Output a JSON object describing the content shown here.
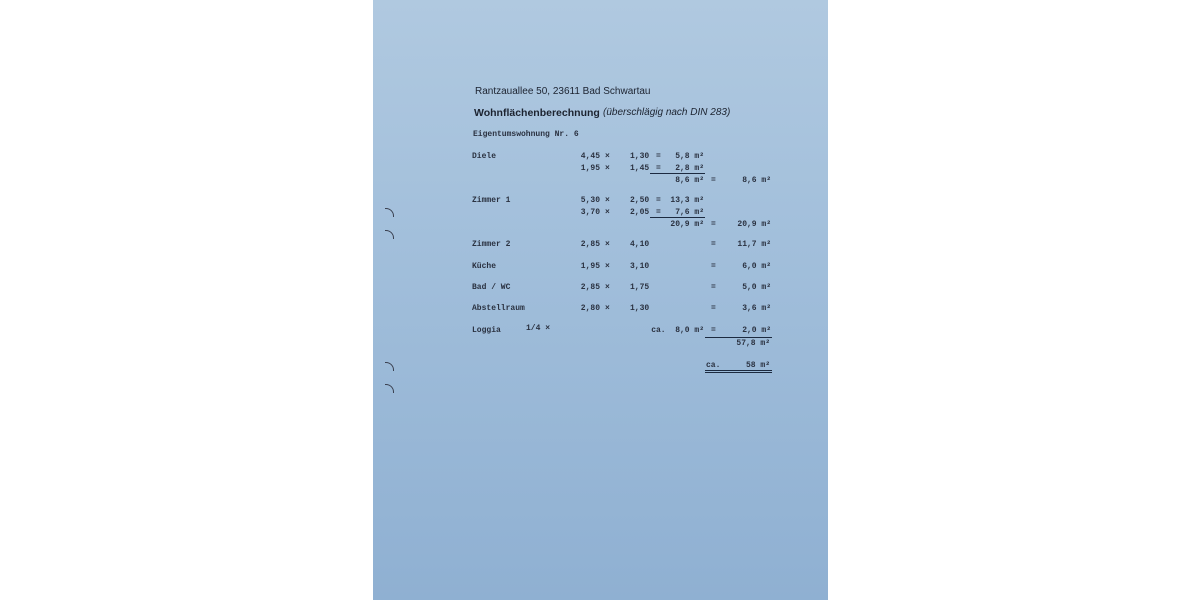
{
  "address": "Rantzauallee 50, 23611 Bad Schwartau",
  "title": "Wohnflächenberechnung",
  "subtitle": "(überschlägig nach DIN 283)",
  "unit_heading": "Eigentumswohnung Nr. 6",
  "rows": [
    {
      "label": "Diele",
      "a": "4,45",
      "x": "×",
      "b": "1,30",
      "eq": "=",
      "res": "5,8 m²",
      "eq2": "",
      "total": ""
    },
    {
      "label": "",
      "a": "1,95",
      "x": "×",
      "b": "1,45",
      "eq": "=",
      "res": "2,8 m²",
      "eq2": "",
      "total": ""
    },
    {
      "label": "",
      "a": "",
      "x": "",
      "b": "",
      "eq": "",
      "res": "8,6 m²",
      "eq2": "=",
      "total": "8,6 m²"
    },
    {
      "label": "Zimmer 1",
      "a": "5,30",
      "x": "×",
      "b": "2,50",
      "eq": "=",
      "res": "13,3 m²",
      "eq2": "",
      "total": ""
    },
    {
      "label": "",
      "a": "3,70",
      "x": "×",
      "b": "2,05",
      "eq": "=",
      "res": "7,6 m²",
      "eq2": "",
      "total": ""
    },
    {
      "label": "",
      "a": "",
      "x": "",
      "b": "",
      "eq": "",
      "res": "20,9 m²",
      "eq2": "=",
      "total": "20,9 m²"
    },
    {
      "label": "Zimmer 2",
      "a": "2,85",
      "x": "×",
      "b": "4,10",
      "eq": "",
      "res": "",
      "eq2": "=",
      "total": "11,7 m²"
    },
    {
      "label": "Küche",
      "a": "1,95",
      "x": "×",
      "b": "3,10",
      "eq": "",
      "res": "",
      "eq2": "=",
      "total": "6,0 m²"
    },
    {
      "label": "Bad / WC",
      "a": "2,85",
      "x": "×",
      "b": "1,75",
      "eq": "",
      "res": "",
      "eq2": "=",
      "total": "5,0 m²"
    },
    {
      "label": "Abstellraum",
      "a": "2,80",
      "x": "×",
      "b": "1,30",
      "eq": "",
      "res": "",
      "eq2": "=",
      "total": "3,6 m²"
    },
    {
      "label": "Loggia",
      "a": "",
      "x": "",
      "b": "",
      "eq": "",
      "res": "ca.  8,0 m²",
      "eq2": "=",
      "total": "2,0 m²"
    }
  ],
  "loggia_factor": "1/4 ×",
  "sum": "57,8 m²",
  "final_prefix": "ca.",
  "final": "58 m²"
}
